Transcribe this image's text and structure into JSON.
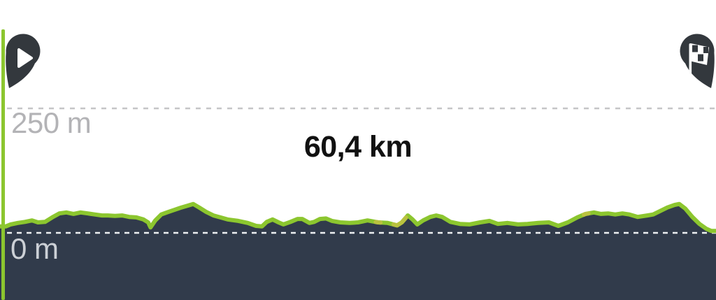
{
  "chart": {
    "distance_label": "60,4 km",
    "y_axis": {
      "upper_label": "250 m",
      "lower_label": "0 m"
    },
    "markers": {
      "start": "play-icon",
      "finish": "checkered-flag-icon"
    },
    "colors": {
      "profile_green": "#8CC62F",
      "steep_yellow": "#B9C23F",
      "fill_dark": "#313B4B",
      "marker_dark": "#33383D",
      "grid_gray": "#C5C5C7",
      "grid_white": "#ECEFF1",
      "label_gray": "#B3B3B6",
      "label_light": "#CCD0D6",
      "distance_text": "#111111"
    }
  },
  "chart_data": {
    "type": "area",
    "title": "Route elevation profile",
    "x_unit": "km",
    "y_unit": "m",
    "x_range_km": [
      0,
      60.4
    ],
    "y_gridlines_m": [
      0,
      250
    ],
    "total_distance_label": "60,4 km",
    "grid": "dashed",
    "legend": "none",
    "distance_km": [
      0,
      0.5,
      0.9,
      1.5,
      2.1,
      2.7,
      3.2,
      3.8,
      4.4,
      5,
      5.6,
      6.2,
      6.8,
      7.4,
      8,
      8.6,
      9.1,
      9.7,
      10.3,
      10.9,
      11.5,
      12.1,
      12.5,
      12.7,
      13.1,
      13.6,
      14.2,
      14.7,
      15.3,
      15.9,
      16.3,
      16.8,
      17.4,
      18,
      18.6,
      19.2,
      20.1,
      20.9,
      21.6,
      22.1,
      22.5,
      23,
      23.5,
      23.9,
      24.5,
      25.1,
      25.5,
      26.1,
      26.5,
      27,
      27.5,
      28,
      28.7,
      29.5,
      30.2,
      31,
      31.9,
      32.7,
      33.5,
      33.9,
      34.4,
      34.8,
      35.2,
      35.7,
      36.3,
      36.8,
      37.3,
      38,
      38.8,
      39.6,
      40.5,
      41.3,
      42,
      42.8,
      43.7,
      44.5,
      45.4,
      46.3,
      47.1,
      47.9,
      48.7,
      49.4,
      50.1,
      50.7,
      51.3,
      51.9,
      52.5,
      53.1,
      53.8,
      54.6,
      55.1,
      55.7,
      56.3,
      56.9,
      57.3,
      57.8,
      58.4,
      59,
      59.6,
      60,
      60.4
    ],
    "elevation_m": [
      13,
      13,
      17,
      20,
      22,
      25,
      21,
      22,
      31,
      39,
      41,
      38,
      41,
      39,
      37,
      35,
      35,
      34,
      35,
      32,
      31,
      27,
      21,
      11,
      25,
      37,
      42,
      46,
      51,
      55,
      58,
      51,
      42,
      35,
      31,
      27,
      24,
      20,
      14,
      13,
      22,
      27,
      21,
      17,
      22,
      28,
      28,
      20,
      22,
      28,
      29,
      24,
      21,
      20,
      21,
      25,
      21,
      20,
      15,
      21,
      35,
      27,
      17,
      25,
      32,
      35,
      32,
      22,
      18,
      17,
      21,
      24,
      18,
      20,
      17,
      18,
      20,
      21,
      14,
      21,
      31,
      38,
      41,
      38,
      39,
      37,
      39,
      37,
      32,
      35,
      37,
      44,
      51,
      56,
      58,
      49,
      32,
      18,
      8,
      4,
      4
    ],
    "steep_segments_km": [
      [
        31.7,
        32.1
      ],
      [
        33.2,
        34.25
      ],
      [
        49.25,
        49.65
      ]
    ]
  }
}
